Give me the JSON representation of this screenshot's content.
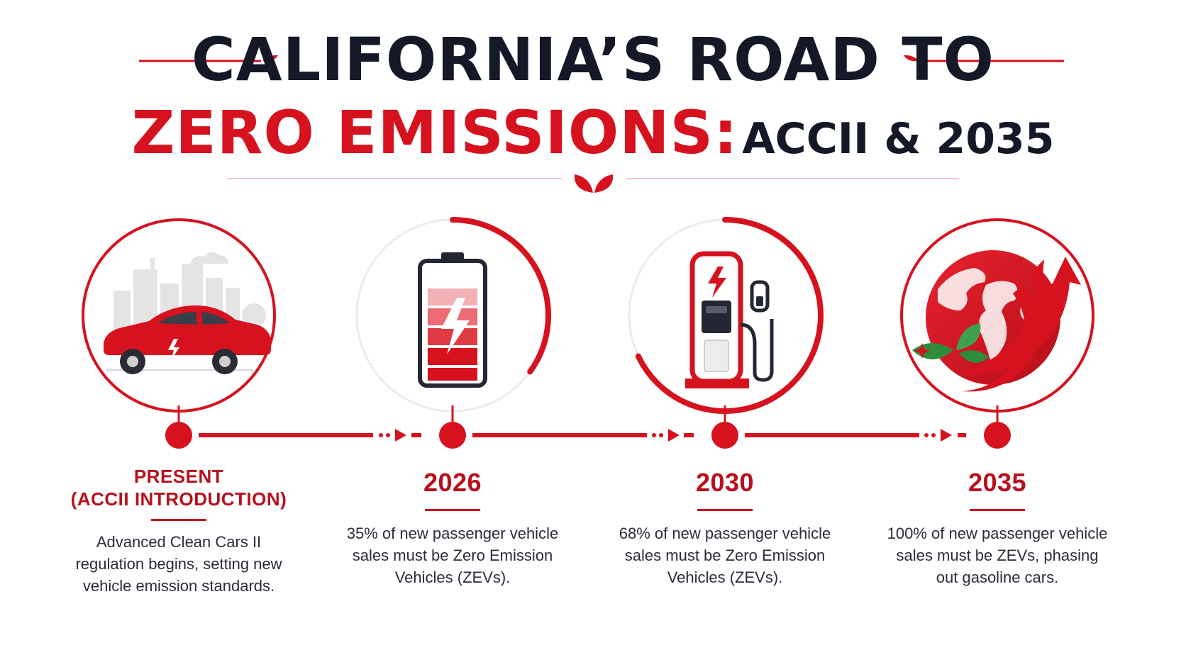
{
  "title": {
    "line1": "CALIFORNIA’S ROAD TO",
    "line2_highlight": "ZERO EMISSIONS:",
    "line2_rest": "ACCII & 2035"
  },
  "colors": {
    "accent": "#d7121f",
    "dark": "#141827",
    "gray": "#d9d9d9",
    "green": "#2e8b3a"
  },
  "milestones": [
    {
      "icon": "electric-car-icon",
      "title_line1": "PRESENT",
      "title_line2": "(ACCII INTRODUCTION)",
      "description": "Advanced Clean Cars II regulation begins, setting new vehicle emission standards."
    },
    {
      "icon": "battery-icon",
      "title_line1": "2026",
      "description": "35% of new passenger vehicle sales must be Zero Emission Vehicles (ZEVs).",
      "share_percent": 35
    },
    {
      "icon": "charging-station-icon",
      "title_line1": "2030",
      "description": "68% of new passenger vehicle sales must be Zero Emission Vehicles (ZEVs).",
      "share_percent": 68
    },
    {
      "icon": "globe-icon",
      "title_line1": "2035",
      "description": "100% of new passenger vehicle sales must be ZEVs, phasing out gasoline cars.",
      "share_percent": 100
    }
  ]
}
